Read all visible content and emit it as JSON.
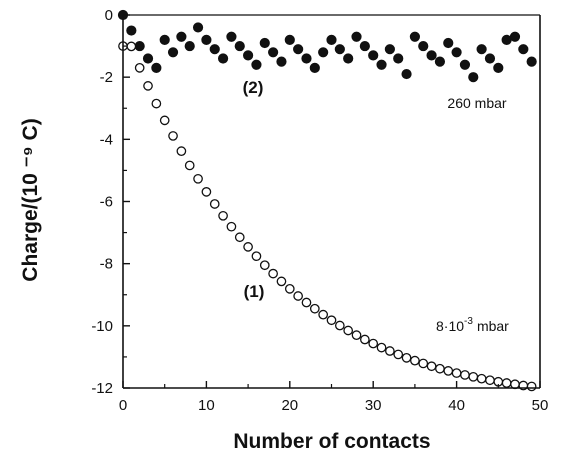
{
  "chart_data": {
    "type": "scatter",
    "xlabel": "Number of contacts",
    "ylabel": "Charge/(10 ⁻⁹ C)",
    "xlim": [
      0,
      50
    ],
    "ylim": [
      -12,
      0
    ],
    "x_ticks": [
      "0",
      "10",
      "20",
      "30",
      "40",
      "50"
    ],
    "y_ticks": [
      "0",
      "-2",
      "-4",
      "-6",
      "-8",
      "-10",
      "-12"
    ],
    "grid": false,
    "series": [
      {
        "name": "(2)",
        "marker": "filled",
        "x": [
          0,
          1,
          2,
          3,
          4,
          5,
          6,
          7,
          8,
          9,
          10,
          11,
          12,
          13,
          14,
          15,
          16,
          17,
          18,
          19,
          20,
          21,
          22,
          23,
          24,
          25,
          26,
          27,
          28,
          29,
          30,
          31,
          32,
          33,
          34,
          35,
          36,
          37,
          38,
          39,
          40,
          41,
          42,
          43,
          44,
          45,
          46,
          47,
          48,
          49
        ],
        "y": [
          0,
          -0.5,
          -1.0,
          -1.4,
          -1.7,
          -0.8,
          -1.2,
          -0.7,
          -1.0,
          -0.4,
          -0.8,
          -1.1,
          -1.4,
          -0.7,
          -1.0,
          -1.3,
          -1.6,
          -0.9,
          -1.2,
          -1.5,
          -0.8,
          -1.1,
          -1.4,
          -1.7,
          -1.2,
          -0.8,
          -1.1,
          -1.4,
          -0.7,
          -1.0,
          -1.3,
          -1.6,
          -1.1,
          -1.4,
          -1.9,
          -0.7,
          -1.0,
          -1.3,
          -1.5,
          -0.9,
          -1.2,
          -1.6,
          -2.0,
          -1.1,
          -1.4,
          -1.7,
          -0.8,
          -0.7,
          -1.1,
          -1.5
        ]
      },
      {
        "name": "(1)",
        "marker": "open",
        "x": [
          0,
          1,
          2,
          3,
          4,
          5,
          6,
          7,
          8,
          9,
          10,
          11,
          12,
          13,
          14,
          15,
          16,
          17,
          18,
          19,
          20,
          21,
          22,
          23,
          24,
          25,
          26,
          27,
          28,
          29,
          30,
          31,
          32,
          33,
          34,
          35,
          36,
          37,
          38,
          39,
          40,
          41,
          42,
          43,
          44,
          45,
          46,
          47,
          48,
          49
        ],
        "y": [
          -1.0,
          -1.01,
          -1.7,
          -2.28,
          -2.85,
          -3.39,
          -3.89,
          -4.38,
          -4.84,
          -5.27,
          -5.69,
          -6.08,
          -6.46,
          -6.81,
          -7.15,
          -7.46,
          -7.76,
          -8.05,
          -8.32,
          -8.57,
          -8.81,
          -9.04,
          -9.25,
          -9.45,
          -9.64,
          -9.82,
          -9.99,
          -10.15,
          -10.3,
          -10.44,
          -10.57,
          -10.7,
          -10.81,
          -10.92,
          -11.03,
          -11.12,
          -11.21,
          -11.3,
          -11.38,
          -11.45,
          -11.52,
          -11.58,
          -11.64,
          -11.7,
          -11.75,
          -11.8,
          -11.84,
          -11.88,
          -11.92,
          -11.95
        ]
      }
    ],
    "annotations": [
      {
        "id": "label-2",
        "text": "(2)"
      },
      {
        "id": "pressure-2",
        "text": "260 mbar"
      },
      {
        "id": "label-1",
        "text": "(1)"
      },
      {
        "id": "pressure-1",
        "base": "8·10",
        "sup": "-3",
        "unit": "mbar"
      }
    ]
  }
}
